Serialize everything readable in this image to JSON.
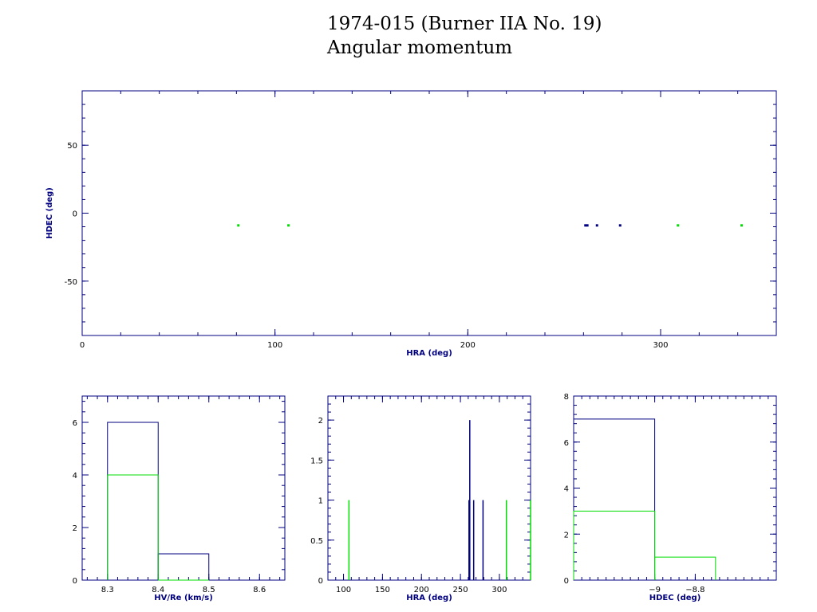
{
  "title_line1": "1974-015 (Burner IIA No. 19)",
  "title_line2": "Angular momentum",
  "colors": {
    "axis": "#000080",
    "blue": "#000080",
    "green": "#00dd00",
    "text": "#000000"
  },
  "chart_data": [
    {
      "id": "scatter",
      "type": "scatter",
      "xlabel": "HRA (deg)",
      "ylabel": "HDEC (deg)",
      "xlim": [
        0,
        360
      ],
      "ylim": [
        -90,
        90
      ],
      "xticks": [
        0,
        100,
        200,
        300
      ],
      "yticks": [
        -50,
        0,
        50
      ],
      "xminor": 20,
      "yminor": 10,
      "series": [
        {
          "color": "blue",
          "points": [
            [
              261,
              -9
            ],
            [
              262,
              -9
            ],
            [
              267,
              -9
            ],
            [
              279,
              -9
            ]
          ]
        },
        {
          "color": "green",
          "points": [
            [
              81,
              -9
            ],
            [
              107,
              -9
            ],
            [
              309,
              -9
            ],
            [
              342,
              -9
            ]
          ]
        }
      ]
    },
    {
      "id": "hist-hv",
      "type": "bar",
      "xlabel": "HV/Re (km/s)",
      "ylabel": "",
      "xlim": [
        8.25,
        8.65
      ],
      "ylim": [
        0,
        7
      ],
      "xticks": [
        8.3,
        8.4,
        8.5,
        8.6
      ],
      "xtick_labels": [
        "8.3",
        "8.4",
        "8.5",
        "8.6"
      ],
      "yticks": [
        0,
        2,
        4,
        6
      ],
      "series": [
        {
          "color": "blue",
          "bins": [
            [
              8.3,
              8.4,
              6
            ],
            [
              8.4,
              8.5,
              1
            ]
          ]
        },
        {
          "color": "green",
          "bins": [
            [
              8.3,
              8.4,
              4
            ],
            [
              8.4,
              8.5,
              0
            ]
          ]
        }
      ]
    },
    {
      "id": "hist-hra",
      "type": "bar",
      "xlabel": "HRA (deg)",
      "ylabel": "",
      "xlim": [
        80,
        340
      ],
      "ylim": [
        0,
        2.3
      ],
      "xticks": [
        100,
        150,
        200,
        250,
        300
      ],
      "xtick_labels": [
        "100",
        "150",
        "200",
        "250",
        "300"
      ],
      "yticks": [
        0,
        0.5,
        1,
        1.5,
        2
      ],
      "ytick_labels": [
        "0",
        "0.5",
        "1",
        "1.5",
        "2"
      ],
      "series": [
        {
          "color": "blue",
          "spikes": [
            [
              261,
              1
            ],
            [
              262,
              2
            ],
            [
              267,
              1
            ],
            [
              279,
              1
            ]
          ]
        },
        {
          "color": "green",
          "spikes": [
            [
              107,
              1
            ],
            [
              309,
              1
            ],
            [
              340,
              1
            ]
          ]
        }
      ]
    },
    {
      "id": "hist-hdec",
      "type": "bar",
      "xlabel": "HDEC (deg)",
      "ylabel": "",
      "xlim": [
        -9.4,
        -8.4
      ],
      "ylim": [
        0,
        8
      ],
      "xticks": [
        -9,
        -8.8
      ],
      "xtick_labels": [
        "−9",
        "−8.8"
      ],
      "yticks": [
        0,
        2,
        4,
        6,
        8
      ],
      "series": [
        {
          "color": "blue",
          "bins": [
            [
              -9.4,
              -9.0,
              7
            ]
          ]
        },
        {
          "color": "green",
          "bins": [
            [
              -9.4,
              -9.0,
              3
            ],
            [
              -9.0,
              -8.7,
              1
            ]
          ]
        }
      ]
    }
  ]
}
